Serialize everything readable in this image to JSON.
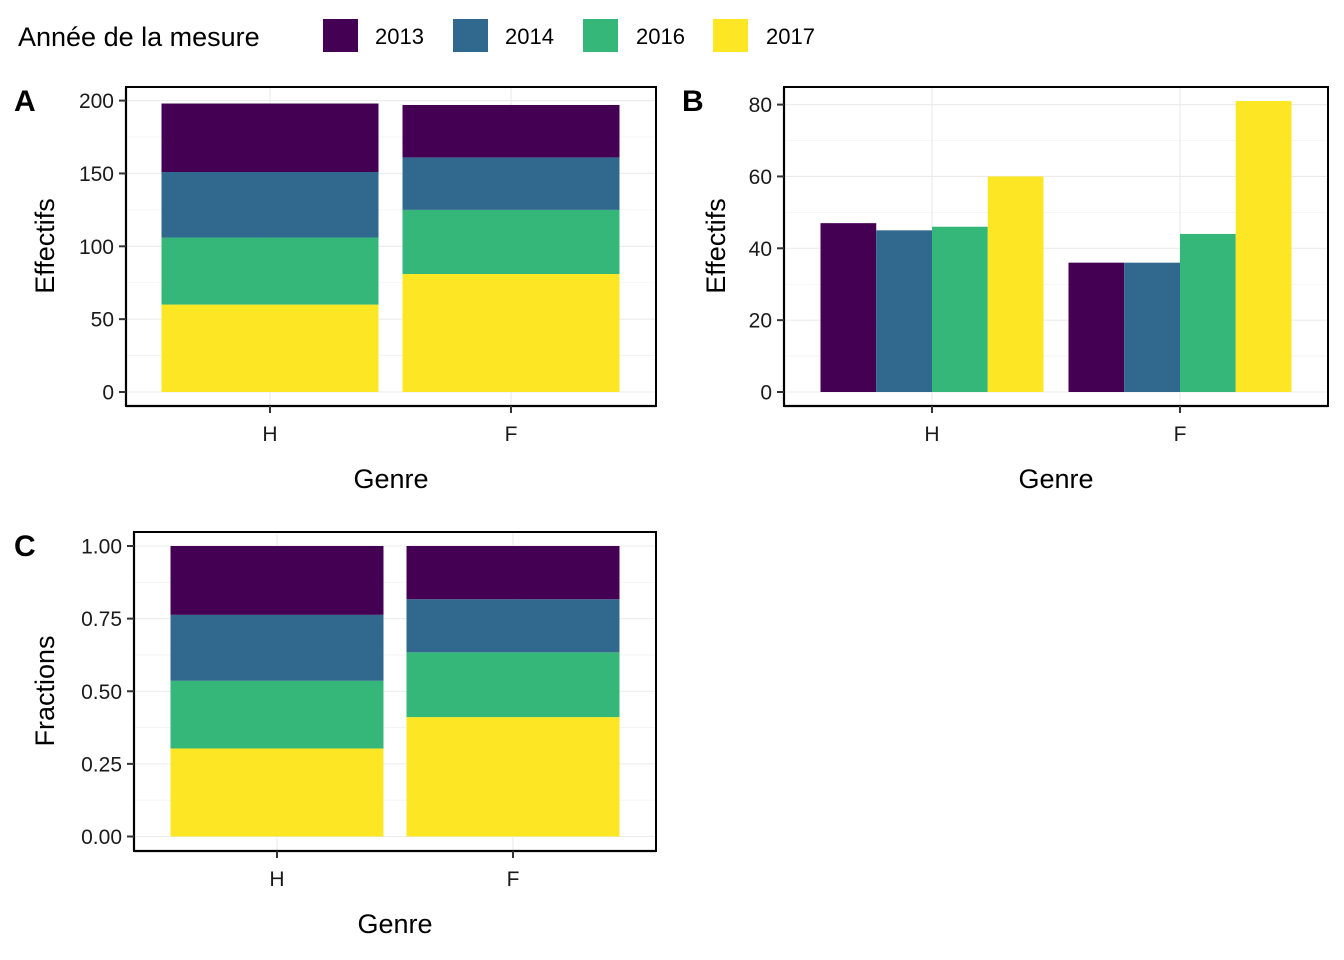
{
  "legend": {
    "title": "Année de la mesure",
    "entries": [
      {
        "label": "2013",
        "color": "#440154"
      },
      {
        "label": "2014",
        "color": "#31688e"
      },
      {
        "label": "2016",
        "color": "#35b779"
      },
      {
        "label": "2017",
        "color": "#fde725"
      }
    ]
  },
  "chart_data": [
    {
      "tag": "A",
      "type": "bar",
      "position": "stack",
      "categories": [
        "H",
        "F"
      ],
      "series": [
        {
          "name": "2013",
          "values": [
            47,
            36
          ]
        },
        {
          "name": "2014",
          "values": [
            45,
            36
          ]
        },
        {
          "name": "2016",
          "values": [
            46,
            44
          ]
        },
        {
          "name": "2017",
          "values": [
            60,
            81
          ]
        }
      ],
      "xlabel": "Genre",
      "ylabel": "Effectifs",
      "ylim": [
        0,
        200
      ],
      "yticks": [
        "0",
        "50",
        "100",
        "150",
        "200"
      ],
      "grid": true
    },
    {
      "tag": "B",
      "type": "bar",
      "position": "dodge",
      "categories": [
        "H",
        "F"
      ],
      "series": [
        {
          "name": "2013",
          "values": [
            47,
            36
          ]
        },
        {
          "name": "2014",
          "values": [
            45,
            36
          ]
        },
        {
          "name": "2016",
          "values": [
            46,
            44
          ]
        },
        {
          "name": "2017",
          "values": [
            60,
            81
          ]
        }
      ],
      "xlabel": "Genre",
      "ylabel": "Effectifs",
      "ylim": [
        0,
        80
      ],
      "yticks": [
        "0",
        "20",
        "40",
        "60",
        "80"
      ],
      "grid": true
    },
    {
      "tag": "C",
      "type": "bar",
      "position": "fill",
      "categories": [
        "H",
        "F"
      ],
      "series": [
        {
          "name": "2013",
          "values": [
            0.237,
            0.183
          ]
        },
        {
          "name": "2014",
          "values": [
            0.227,
            0.183
          ]
        },
        {
          "name": "2016",
          "values": [
            0.233,
            0.223
          ]
        },
        {
          "name": "2017",
          "values": [
            0.303,
            0.411
          ]
        }
      ],
      "xlabel": "Genre",
      "ylabel": "Fractions",
      "ylim": [
        0,
        1
      ],
      "yticks": [
        "0.00",
        "0.25",
        "0.50",
        "0.75",
        "1.00"
      ],
      "grid": true
    }
  ]
}
